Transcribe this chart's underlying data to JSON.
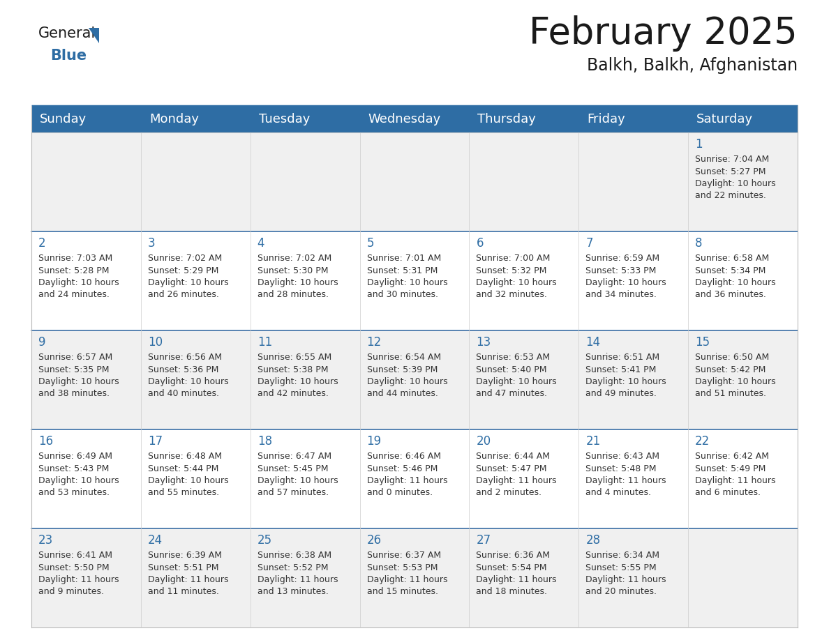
{
  "title": "February 2025",
  "subtitle": "Balkh, Balkh, Afghanistan",
  "header_bg": "#2E6DA4",
  "header_text_color": "#FFFFFF",
  "cell_bg_odd": "#F0F0F0",
  "cell_bg_even": "#FFFFFF",
  "day_number_color": "#2E6DA4",
  "text_color": "#333333",
  "grid_line_color": "#3A6EA5",
  "days_of_week": [
    "Sunday",
    "Monday",
    "Tuesday",
    "Wednesday",
    "Thursday",
    "Friday",
    "Saturday"
  ],
  "calendar_data": [
    [
      {
        "day": null,
        "sunrise": null,
        "sunset": null,
        "daylight": null
      },
      {
        "day": null,
        "sunrise": null,
        "sunset": null,
        "daylight": null
      },
      {
        "day": null,
        "sunrise": null,
        "sunset": null,
        "daylight": null
      },
      {
        "day": null,
        "sunrise": null,
        "sunset": null,
        "daylight": null
      },
      {
        "day": null,
        "sunrise": null,
        "sunset": null,
        "daylight": null
      },
      {
        "day": null,
        "sunrise": null,
        "sunset": null,
        "daylight": null
      },
      {
        "day": 1,
        "sunrise": "7:04 AM",
        "sunset": "5:27 PM",
        "daylight": "10 hours\nand 22 minutes."
      }
    ],
    [
      {
        "day": 2,
        "sunrise": "7:03 AM",
        "sunset": "5:28 PM",
        "daylight": "10 hours\nand 24 minutes."
      },
      {
        "day": 3,
        "sunrise": "7:02 AM",
        "sunset": "5:29 PM",
        "daylight": "10 hours\nand 26 minutes."
      },
      {
        "day": 4,
        "sunrise": "7:02 AM",
        "sunset": "5:30 PM",
        "daylight": "10 hours\nand 28 minutes."
      },
      {
        "day": 5,
        "sunrise": "7:01 AM",
        "sunset": "5:31 PM",
        "daylight": "10 hours\nand 30 minutes."
      },
      {
        "day": 6,
        "sunrise": "7:00 AM",
        "sunset": "5:32 PM",
        "daylight": "10 hours\nand 32 minutes."
      },
      {
        "day": 7,
        "sunrise": "6:59 AM",
        "sunset": "5:33 PM",
        "daylight": "10 hours\nand 34 minutes."
      },
      {
        "day": 8,
        "sunrise": "6:58 AM",
        "sunset": "5:34 PM",
        "daylight": "10 hours\nand 36 minutes."
      }
    ],
    [
      {
        "day": 9,
        "sunrise": "6:57 AM",
        "sunset": "5:35 PM",
        "daylight": "10 hours\nand 38 minutes."
      },
      {
        "day": 10,
        "sunrise": "6:56 AM",
        "sunset": "5:36 PM",
        "daylight": "10 hours\nand 40 minutes."
      },
      {
        "day": 11,
        "sunrise": "6:55 AM",
        "sunset": "5:38 PM",
        "daylight": "10 hours\nand 42 minutes."
      },
      {
        "day": 12,
        "sunrise": "6:54 AM",
        "sunset": "5:39 PM",
        "daylight": "10 hours\nand 44 minutes."
      },
      {
        "day": 13,
        "sunrise": "6:53 AM",
        "sunset": "5:40 PM",
        "daylight": "10 hours\nand 47 minutes."
      },
      {
        "day": 14,
        "sunrise": "6:51 AM",
        "sunset": "5:41 PM",
        "daylight": "10 hours\nand 49 minutes."
      },
      {
        "day": 15,
        "sunrise": "6:50 AM",
        "sunset": "5:42 PM",
        "daylight": "10 hours\nand 51 minutes."
      }
    ],
    [
      {
        "day": 16,
        "sunrise": "6:49 AM",
        "sunset": "5:43 PM",
        "daylight": "10 hours\nand 53 minutes."
      },
      {
        "day": 17,
        "sunrise": "6:48 AM",
        "sunset": "5:44 PM",
        "daylight": "10 hours\nand 55 minutes."
      },
      {
        "day": 18,
        "sunrise": "6:47 AM",
        "sunset": "5:45 PM",
        "daylight": "10 hours\nand 57 minutes."
      },
      {
        "day": 19,
        "sunrise": "6:46 AM",
        "sunset": "5:46 PM",
        "daylight": "11 hours\nand 0 minutes."
      },
      {
        "day": 20,
        "sunrise": "6:44 AM",
        "sunset": "5:47 PM",
        "daylight": "11 hours\nand 2 minutes."
      },
      {
        "day": 21,
        "sunrise": "6:43 AM",
        "sunset": "5:48 PM",
        "daylight": "11 hours\nand 4 minutes."
      },
      {
        "day": 22,
        "sunrise": "6:42 AM",
        "sunset": "5:49 PM",
        "daylight": "11 hours\nand 6 minutes."
      }
    ],
    [
      {
        "day": 23,
        "sunrise": "6:41 AM",
        "sunset": "5:50 PM",
        "daylight": "11 hours\nand 9 minutes."
      },
      {
        "day": 24,
        "sunrise": "6:39 AM",
        "sunset": "5:51 PM",
        "daylight": "11 hours\nand 11 minutes."
      },
      {
        "day": 25,
        "sunrise": "6:38 AM",
        "sunset": "5:52 PM",
        "daylight": "11 hours\nand 13 minutes."
      },
      {
        "day": 26,
        "sunrise": "6:37 AM",
        "sunset": "5:53 PM",
        "daylight": "11 hours\nand 15 minutes."
      },
      {
        "day": 27,
        "sunrise": "6:36 AM",
        "sunset": "5:54 PM",
        "daylight": "11 hours\nand 18 minutes."
      },
      {
        "day": 28,
        "sunrise": "6:34 AM",
        "sunset": "5:55 PM",
        "daylight": "11 hours\nand 20 minutes."
      },
      {
        "day": null,
        "sunrise": null,
        "sunset": null,
        "daylight": null
      }
    ]
  ],
  "title_fontsize": 38,
  "subtitle_fontsize": 17,
  "header_fontsize": 13,
  "day_num_fontsize": 12,
  "cell_text_fontsize": 9
}
